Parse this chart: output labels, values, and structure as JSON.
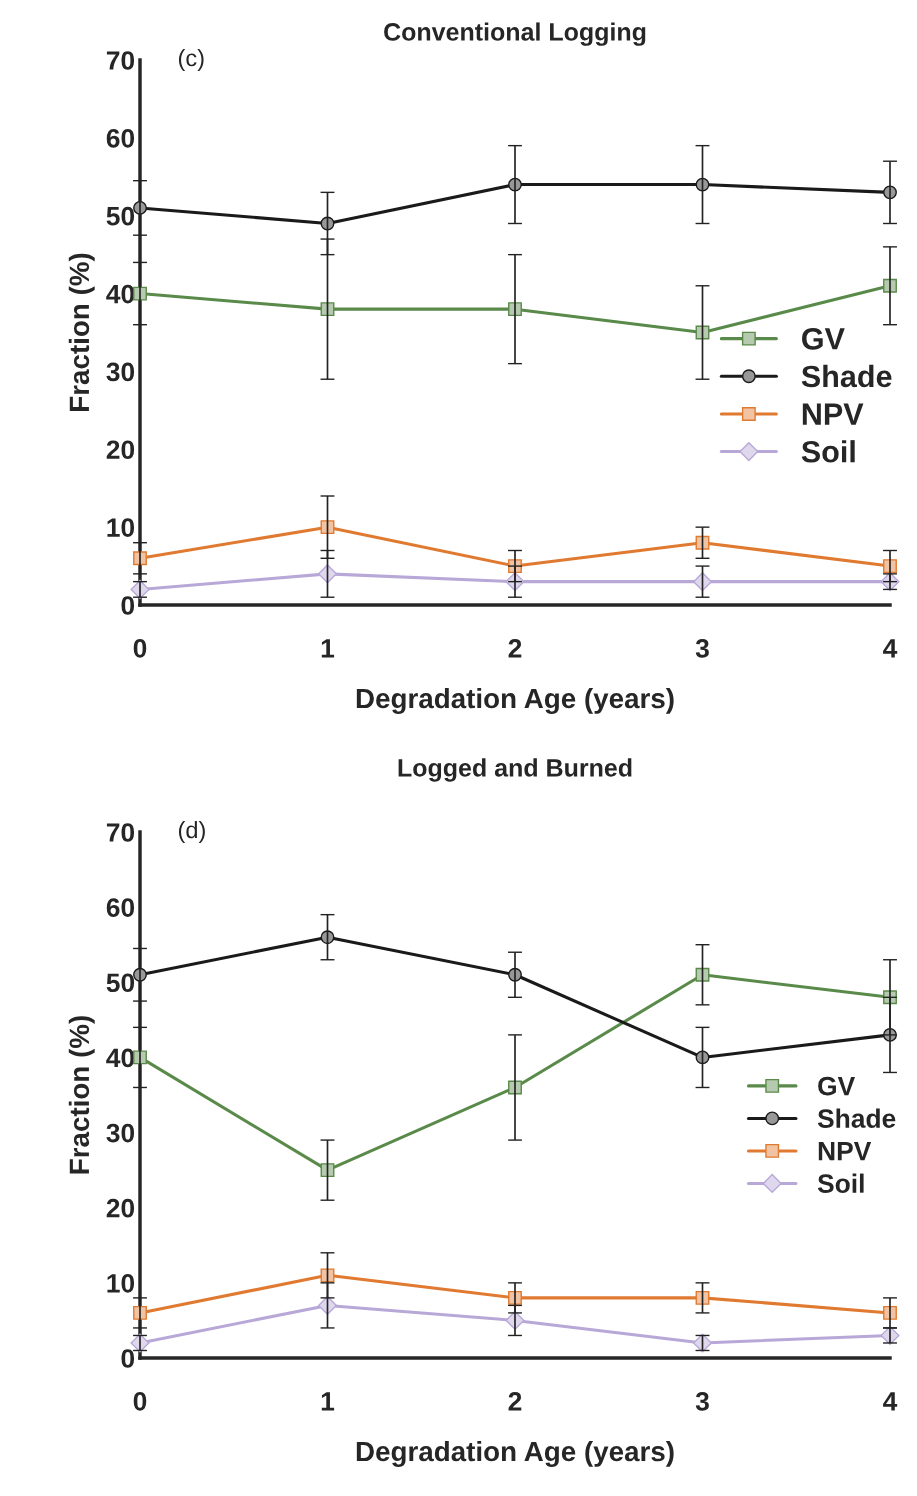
{
  "chart_data": [
    {
      "type": "line",
      "title": "Conventional Logging",
      "xlabel": "Degradation Age (years)",
      "ylabel": "Fraction (%)",
      "annotations": [
        "(c)"
      ],
      "x": [
        0,
        1,
        2,
        3,
        4
      ],
      "xlim": [
        0,
        4
      ],
      "xticks": [
        0,
        1,
        2,
        3,
        4
      ],
      "ylim": [
        0,
        70
      ],
      "yticks": [
        0,
        10,
        20,
        30,
        40,
        50,
        60,
        70
      ],
      "grid": false,
      "legend": "right",
      "series": [
        {
          "name": "GV",
          "color": "#5a8a4a",
          "marker": "square",
          "values": [
            40,
            38,
            38,
            35,
            41
          ],
          "errors": [
            4,
            9,
            7,
            6,
            5
          ]
        },
        {
          "name": "Shade",
          "color": "#1a1a1a",
          "marker": "circle",
          "values": [
            51,
            49,
            54,
            54,
            53
          ],
          "errors": [
            3.5,
            4,
            5,
            5,
            4
          ]
        },
        {
          "name": "NPV",
          "color": "#e07a30",
          "marker": "square",
          "values": [
            6,
            10,
            5,
            8,
            5
          ],
          "errors": [
            2,
            4,
            2,
            2,
            2
          ]
        },
        {
          "name": "Soil",
          "color": "#b8a8d8",
          "marker": "diamond",
          "values": [
            2,
            4,
            3,
            3,
            3
          ],
          "errors": [
            1,
            3,
            2,
            2,
            1
          ]
        }
      ]
    },
    {
      "type": "line",
      "title": "Logged and Burned",
      "xlabel": "Degradation Age (years)",
      "ylabel": "Fraction (%)",
      "annotations": [
        "(d)"
      ],
      "x": [
        0,
        1,
        2,
        3,
        4
      ],
      "xlim": [
        0,
        4
      ],
      "xticks": [
        0,
        1,
        2,
        3,
        4
      ],
      "ylim": [
        0,
        70
      ],
      "yticks": [
        0,
        10,
        20,
        30,
        40,
        50,
        60,
        70
      ],
      "grid": false,
      "legend": "right",
      "series": [
        {
          "name": "GV",
          "color": "#5a8a4a",
          "marker": "square",
          "values": [
            40,
            25,
            36,
            51,
            48
          ],
          "errors": [
            4,
            4,
            7,
            4,
            5
          ]
        },
        {
          "name": "Shade",
          "color": "#1a1a1a",
          "marker": "circle",
          "values": [
            51,
            56,
            51,
            40,
            43
          ],
          "errors": [
            3.5,
            3,
            3,
            4,
            5
          ]
        },
        {
          "name": "NPV",
          "color": "#e07a30",
          "marker": "square",
          "values": [
            6,
            11,
            8,
            8,
            6
          ],
          "errors": [
            2,
            3,
            2,
            2,
            2
          ]
        },
        {
          "name": "Soil",
          "color": "#b8a8d8",
          "marker": "diamond",
          "values": [
            2,
            7,
            5,
            2,
            3
          ],
          "errors": [
            1,
            3,
            2,
            1,
            1
          ]
        }
      ]
    }
  ]
}
